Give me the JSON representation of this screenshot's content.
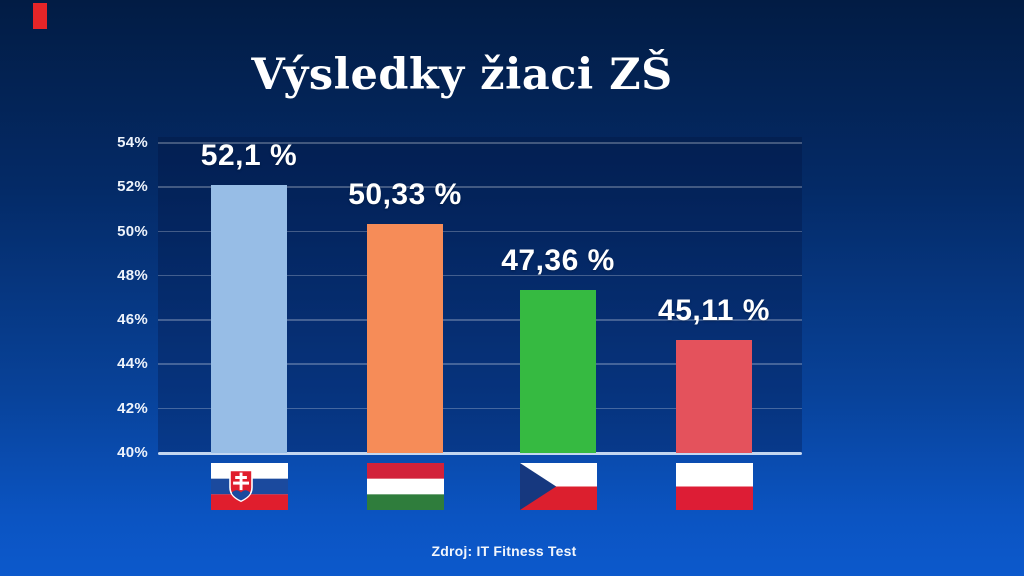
{
  "accent": {
    "color": "#e62528"
  },
  "header": {
    "title": "Výsledky žiaci ZŠ"
  },
  "footer": {
    "source": "Zdroj: IT Fitness Test"
  },
  "chart_data": {
    "type": "bar",
    "title": "Výsledky žiaci ZŠ",
    "categories": [
      "slovakia",
      "hungary",
      "czechia",
      "poland"
    ],
    "category_icons": [
      "slovakia-flag-icon",
      "hungary-flag-icon",
      "czechia-flag-icon",
      "poland-flag-icon"
    ],
    "values": [
      52.1,
      50.33,
      47.36,
      45.11
    ],
    "value_labels": [
      "52,1 %",
      "50,33 %",
      "47,36 %",
      "45,11 %"
    ],
    "bar_colors": [
      "#97bde6",
      "#f68c58",
      "#36ba41",
      "#e4525c"
    ],
    "xlabel": "",
    "ylabel": "",
    "ylim": [
      40,
      54
    ],
    "ytick_step": 2,
    "ytick_labels": [
      "54%",
      "52%",
      "50%",
      "48%",
      "46%",
      "44%",
      "42%",
      "40%"
    ],
    "grid": true,
    "legend_position": "none",
    "source": "Zdroj: IT Fitness Test"
  },
  "flags": [
    {
      "type": "slovakia",
      "country": "Slovakia",
      "colors": {
        "white": "#ffffff",
        "blue": "#1b4a9e",
        "red": "#e01e2d"
      }
    },
    {
      "type": "hungary",
      "country": "Hungary",
      "colors": {
        "red": "#d2213a",
        "white": "#ffffff",
        "green": "#2f7d3c"
      }
    },
    {
      "type": "czechia",
      "country": "Czech Republic",
      "colors": {
        "white": "#ffffff",
        "red": "#dc1f2e",
        "blue": "#16387f"
      }
    },
    {
      "type": "poland",
      "country": "Poland",
      "colors": {
        "white": "#ffffff",
        "red": "#dd1d35"
      }
    }
  ]
}
